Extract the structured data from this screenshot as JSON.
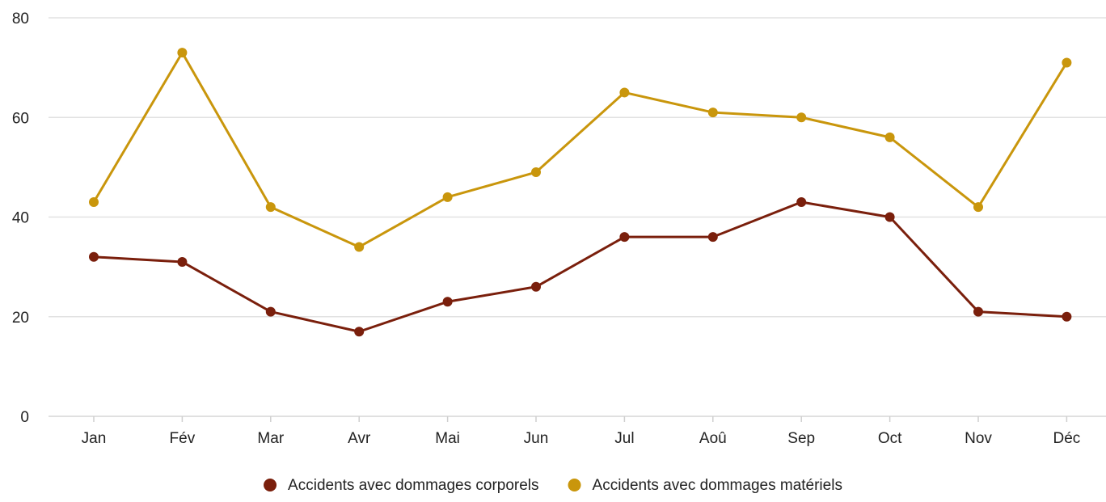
{
  "chart_data": {
    "type": "line",
    "title": "",
    "xlabel": "",
    "ylabel": "",
    "categories": [
      "Jan",
      "Fév",
      "Mar",
      "Avr",
      "Mai",
      "Jun",
      "Jul",
      "Aoû",
      "Sep",
      "Oct",
      "Nov",
      "Déc"
    ],
    "y_ticks": [
      "0",
      "20",
      "40",
      "60",
      "80"
    ],
    "ylim": [
      0,
      80
    ],
    "grid": true,
    "legend_position": "bottom-center",
    "series": [
      {
        "name": "Accidents avec dommages corporels",
        "color": "#7a1f0c",
        "values": [
          32,
          31,
          21,
          17,
          23,
          26,
          36,
          36,
          43,
          40,
          21,
          20
        ]
      },
      {
        "name": "Accidents avec dommages matériels",
        "color": "#c9960c",
        "values": [
          43,
          73,
          42,
          34,
          44,
          49,
          65,
          61,
          60,
          56,
          42,
          71
        ]
      }
    ]
  }
}
